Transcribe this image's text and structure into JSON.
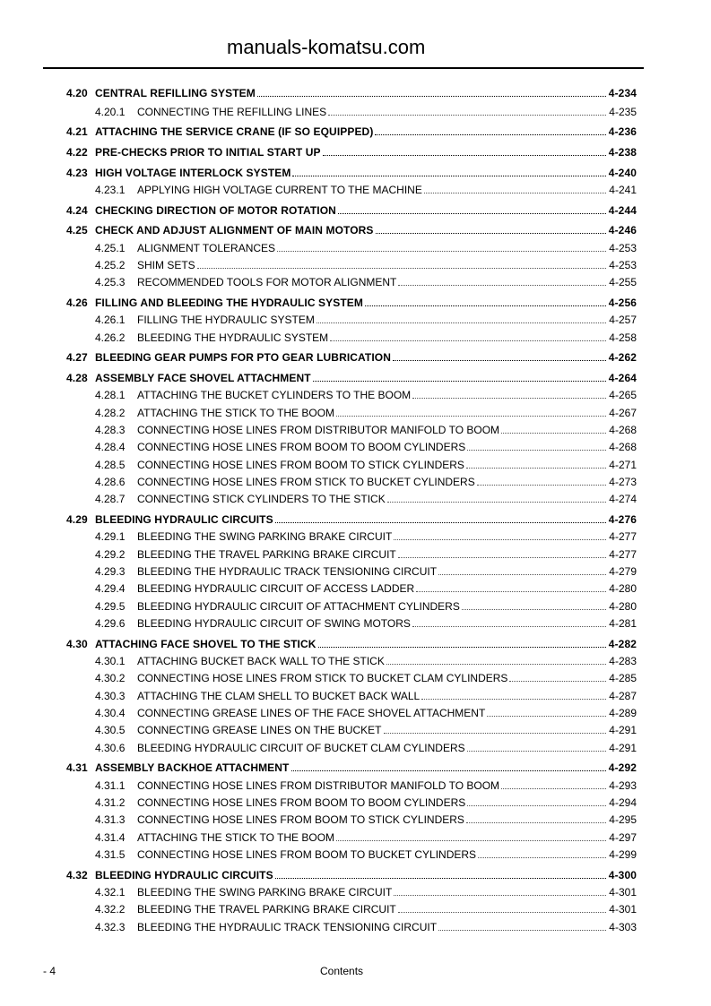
{
  "entries": [
    {
      "level": 1,
      "num": "4.20",
      "title": "CENTRAL REFILLING SYSTEM",
      "page": "4-234"
    },
    {
      "level": 2,
      "num": "4.20.1",
      "title": "CONNECTING THE REFILLING LINES",
      "page": "4-235"
    },
    {
      "level": 1,
      "num": "4.21",
      "title": "ATTACHING THE SERVICE CRANE (IF SO EQUIPPED)",
      "page": "4-236"
    },
    {
      "level": 1,
      "num": "4.22",
      "title": "PRE-CHECKS PRIOR TO INITIAL START UP",
      "page": "4-238"
    },
    {
      "level": 1,
      "num": "4.23",
      "title": "HIGH VOLTAGE INTERLOCK SYSTEM",
      "page": "4-240"
    },
    {
      "level": 2,
      "num": "4.23.1",
      "title": "APPLYING HIGH VOLTAGE CURRENT TO THE MACHINE",
      "page": "4-241"
    },
    {
      "level": 1,
      "num": "4.24",
      "title": "CHECKING DIRECTION OF MOTOR ROTATION",
      "page": "4-244"
    },
    {
      "level": 1,
      "num": "4.25",
      "title": "CHECK AND ADJUST ALIGNMENT OF MAIN MOTORS",
      "page": "4-246"
    },
    {
      "level": 2,
      "num": "4.25.1",
      "title": "ALIGNMENT TOLERANCES",
      "page": "4-253"
    },
    {
      "level": 2,
      "num": "4.25.2",
      "title": "SHIM SETS",
      "page": "4-253"
    },
    {
      "level": 2,
      "num": "4.25.3",
      "title": "RECOMMENDED TOOLS FOR MOTOR ALIGNMENT",
      "page": "4-255"
    },
    {
      "level": 1,
      "num": "4.26",
      "title": "FILLING AND BLEEDING THE HYDRAULIC SYSTEM",
      "page": "4-256"
    },
    {
      "level": 2,
      "num": "4.26.1",
      "title": "FILLING THE HYDRAULIC SYSTEM",
      "page": "4-257"
    },
    {
      "level": 2,
      "num": "4.26.2",
      "title": "BLEEDING THE HYDRAULIC SYSTEM",
      "page": "4-258"
    },
    {
      "level": 1,
      "num": "4.27",
      "title": "BLEEDING GEAR PUMPS FOR PTO GEAR LUBRICATION",
      "page": "4-262"
    },
    {
      "level": 1,
      "num": "4.28",
      "title": "ASSEMBLY FACE SHOVEL ATTACHMENT",
      "page": "4-264"
    },
    {
      "level": 2,
      "num": "4.28.1",
      "title": "ATTACHING THE BUCKET CYLINDERS TO THE BOOM",
      "page": "4-265"
    },
    {
      "level": 2,
      "num": "4.28.2",
      "title": "ATTACHING THE STICK TO THE BOOM",
      "page": "4-267"
    },
    {
      "level": 2,
      "num": "4.28.3",
      "title": "CONNECTING HOSE LINES FROM DISTRIBUTOR MANIFOLD TO BOOM",
      "page": "4-268"
    },
    {
      "level": 2,
      "num": "4.28.4",
      "title": "CONNECTING HOSE LINES FROM BOOM TO BOOM CYLINDERS",
      "page": "4-268"
    },
    {
      "level": 2,
      "num": "4.28.5",
      "title": "CONNECTING HOSE LINES FROM BOOM TO STICK CYLINDERS",
      "page": "4-271"
    },
    {
      "level": 2,
      "num": "4.28.6",
      "title": "CONNECTING HOSE LINES FROM STICK TO BUCKET CYLINDERS",
      "page": "4-273"
    },
    {
      "level": 2,
      "num": "4.28.7",
      "title": "CONNECTING STICK CYLINDERS TO THE STICK",
      "page": "4-274"
    },
    {
      "level": 1,
      "num": "4.29",
      "title": "BLEEDING HYDRAULIC CIRCUITS",
      "page": "4-276"
    },
    {
      "level": 2,
      "num": "4.29.1",
      "title": "BLEEDING THE SWING PARKING BRAKE CIRCUIT",
      "page": "4-277"
    },
    {
      "level": 2,
      "num": "4.29.2",
      "title": "BLEEDING THE TRAVEL PARKING BRAKE CIRCUIT",
      "page": "4-277"
    },
    {
      "level": 2,
      "num": "4.29.3",
      "title": "BLEEDING THE HYDRAULIC TRACK TENSIONING CIRCUIT",
      "page": "4-279"
    },
    {
      "level": 2,
      "num": "4.29.4",
      "title": "BLEEDING HYDRAULIC CIRCUIT OF ACCESS LADDER",
      "page": "4-280"
    },
    {
      "level": 2,
      "num": "4.29.5",
      "title": "BLEEDING HYDRAULIC CIRCUIT OF ATTACHMENT CYLINDERS",
      "page": "4-280"
    },
    {
      "level": 2,
      "num": "4.29.6",
      "title": "BLEEDING HYDRAULIC CIRCUIT OF SWING MOTORS",
      "page": "4-281"
    },
    {
      "level": 1,
      "num": "4.30",
      "title": "ATTACHING FACE SHOVEL TO THE STICK",
      "page": "4-282"
    },
    {
      "level": 2,
      "num": "4.30.1",
      "title": "ATTACHING BUCKET BACK WALL TO THE STICK",
      "page": "4-283"
    },
    {
      "level": 2,
      "num": "4.30.2",
      "title": "CONNECTING HOSE LINES FROM STICK TO BUCKET CLAM CYLINDERS",
      "page": "4-285"
    },
    {
      "level": 2,
      "num": "4.30.3",
      "title": "ATTACHING THE CLAM SHELL TO BUCKET BACK WALL",
      "page": "4-287"
    },
    {
      "level": 2,
      "num": "4.30.4",
      "title": "CONNECTING GREASE LINES OF THE FACE SHOVEL ATTACHMENT",
      "page": "4-289"
    },
    {
      "level": 2,
      "num": "4.30.5",
      "title": "CONNECTING GREASE LINES ON THE BUCKET",
      "page": "4-291"
    },
    {
      "level": 2,
      "num": "4.30.6",
      "title": "BLEEDING HYDRAULIC CIRCUIT OF BUCKET CLAM CYLINDERS",
      "page": "4-291"
    },
    {
      "level": 1,
      "num": "4.31",
      "title": "ASSEMBLY BACKHOE ATTACHMENT",
      "page": "4-292"
    },
    {
      "level": 2,
      "num": "4.31.1",
      "title": "CONNECTING HOSE LINES FROM DISTRIBUTOR MANIFOLD TO BOOM",
      "page": "4-293"
    },
    {
      "level": 2,
      "num": "4.31.2",
      "title": "CONNECTING HOSE LINES FROM BOOM TO BOOM CYLINDERS",
      "page": "4-294"
    },
    {
      "level": 2,
      "num": "4.31.3",
      "title": "CONNECTING HOSE LINES FROM BOOM TO STICK CYLINDERS",
      "page": "4-295"
    },
    {
      "level": 2,
      "num": "4.31.4",
      "title": "ATTACHING THE STICK TO THE BOOM",
      "page": "4-297"
    },
    {
      "level": 2,
      "num": "4.31.5",
      "title": "CONNECTING HOSE LINES FROM BOOM TO BUCKET CYLINDERS",
      "page": "4-299"
    },
    {
      "level": 1,
      "num": "4.32",
      "title": "BLEEDING HYDRAULIC CIRCUITS",
      "page": "4-300"
    },
    {
      "level": 2,
      "num": "4.32.1",
      "title": "BLEEDING THE SWING PARKING BRAKE CIRCUIT",
      "page": "4-301"
    },
    {
      "level": 2,
      "num": "4.32.2",
      "title": "BLEEDING THE TRAVEL PARKING BRAKE CIRCUIT",
      "page": "4-301"
    },
    {
      "level": 2,
      "num": "4.32.3",
      "title": "BLEEDING THE HYDRAULIC TRACK TENSIONING CIRCUIT",
      "page": "4-303"
    }
  ],
  "watermark": "manuals-komatsu.com",
  "footer": {
    "page_number": "- 4",
    "section": "Contents"
  }
}
